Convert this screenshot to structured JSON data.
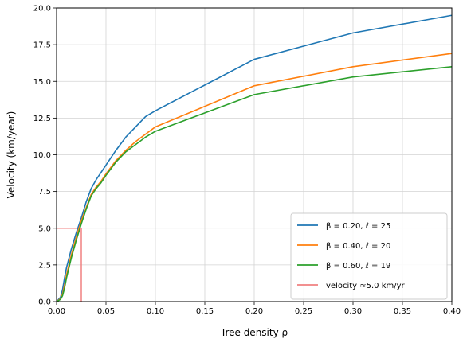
{
  "chart_data": {
    "type": "line",
    "title": "",
    "xlabel": "Tree density ρ",
    "ylabel": "Velocity (km/year)",
    "xlim": [
      0.0,
      0.4
    ],
    "ylim": [
      0.0,
      20.0
    ],
    "xticks": [
      0.0,
      0.05,
      0.1,
      0.15,
      0.2,
      0.25,
      0.3,
      0.35,
      0.4
    ],
    "xtick_labels": [
      "0.00",
      "0.05",
      "0.10",
      "0.15",
      "0.20",
      "0.25",
      "0.30",
      "0.35",
      "0.40"
    ],
    "yticks": [
      0.0,
      2.5,
      5.0,
      7.5,
      10.0,
      12.5,
      15.0,
      17.5,
      20.0
    ],
    "ytick_labels": [
      "0.0",
      "2.5",
      "5.0",
      "7.5",
      "10.0",
      "12.5",
      "15.0",
      "17.5",
      "20.0"
    ],
    "grid": true,
    "legend_position": "lower-right",
    "series": [
      {
        "name": "β = 0.20, ℓ = 25",
        "color": "#1f77b4",
        "x": [
          0.0,
          0.004,
          0.006,
          0.008,
          0.01,
          0.015,
          0.02,
          0.025,
          0.03,
          0.035,
          0.04,
          0.045,
          0.05,
          0.06,
          0.07,
          0.08,
          0.09,
          0.1,
          0.2,
          0.3,
          0.4
        ],
        "y": [
          0.0,
          0.3,
          0.8,
          1.6,
          2.3,
          3.6,
          4.7,
          5.7,
          6.8,
          7.7,
          8.3,
          8.8,
          9.3,
          10.3,
          11.2,
          11.9,
          12.6,
          13.0,
          16.5,
          18.3,
          19.5
        ]
      },
      {
        "name": "β = 0.40, ℓ = 20",
        "color": "#ff7f0e",
        "x": [
          0.0,
          0.004,
          0.006,
          0.008,
          0.01,
          0.015,
          0.02,
          0.025,
          0.03,
          0.035,
          0.04,
          0.045,
          0.05,
          0.06,
          0.07,
          0.08,
          0.09,
          0.1,
          0.2,
          0.3,
          0.4
        ],
        "y": [
          0.0,
          0.2,
          0.5,
          1.1,
          1.8,
          3.2,
          4.4,
          5.5,
          6.4,
          7.3,
          7.8,
          8.2,
          8.7,
          9.6,
          10.3,
          10.9,
          11.4,
          11.9,
          14.7,
          16.0,
          16.9
        ]
      },
      {
        "name": "β = 0.60, ℓ = 19",
        "color": "#2ca02c",
        "x": [
          0.0,
          0.004,
          0.006,
          0.008,
          0.01,
          0.015,
          0.02,
          0.025,
          0.03,
          0.035,
          0.04,
          0.045,
          0.05,
          0.06,
          0.07,
          0.08,
          0.09,
          0.1,
          0.2,
          0.3,
          0.4
        ],
        "y": [
          0.0,
          0.15,
          0.4,
          0.9,
          1.6,
          3.0,
          4.2,
          5.3,
          6.3,
          7.2,
          7.7,
          8.1,
          8.6,
          9.5,
          10.2,
          10.7,
          11.2,
          11.6,
          14.1,
          15.3,
          16.0
        ]
      }
    ],
    "reference": {
      "name": "velocity ≈5.0 km/yr",
      "color": "#f08080",
      "x": 0.025,
      "y": 5.0
    }
  }
}
